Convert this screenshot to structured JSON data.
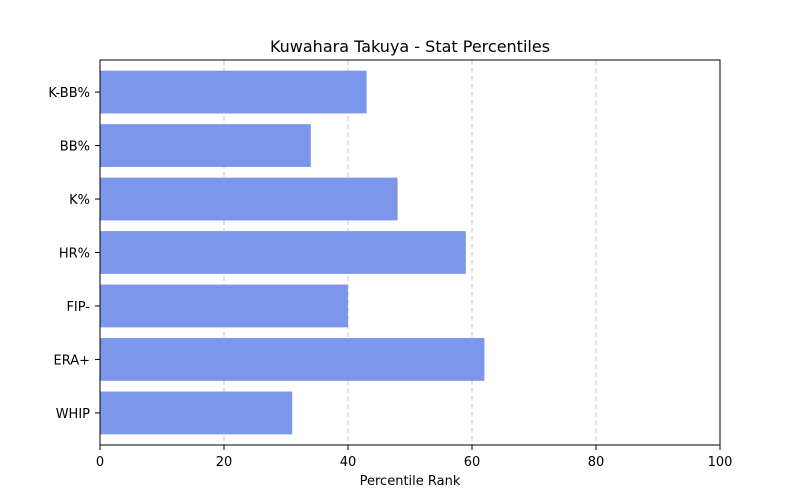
{
  "chart_data": {
    "type": "bar",
    "orientation": "horizontal",
    "title": "Kuwahara Takuya - Stat Percentiles",
    "xlabel": "Percentile Rank",
    "ylabel": "",
    "categories": [
      "K-BB%",
      "BB%",
      "K%",
      "HR%",
      "FIP-",
      "ERA+",
      "WHIP"
    ],
    "values": [
      43,
      34,
      48,
      59,
      40,
      62,
      31
    ],
    "xlim": [
      0,
      100
    ],
    "xticks": [
      0,
      20,
      40,
      60,
      80,
      100
    ],
    "xtick_labels": [
      "0",
      "20",
      "40",
      "60",
      "80",
      "100"
    ],
    "grid": "x-dashed",
    "colors": {
      "bar": "#7B96EA",
      "grid": "#c8c8c8",
      "axis": "#000000"
    }
  }
}
